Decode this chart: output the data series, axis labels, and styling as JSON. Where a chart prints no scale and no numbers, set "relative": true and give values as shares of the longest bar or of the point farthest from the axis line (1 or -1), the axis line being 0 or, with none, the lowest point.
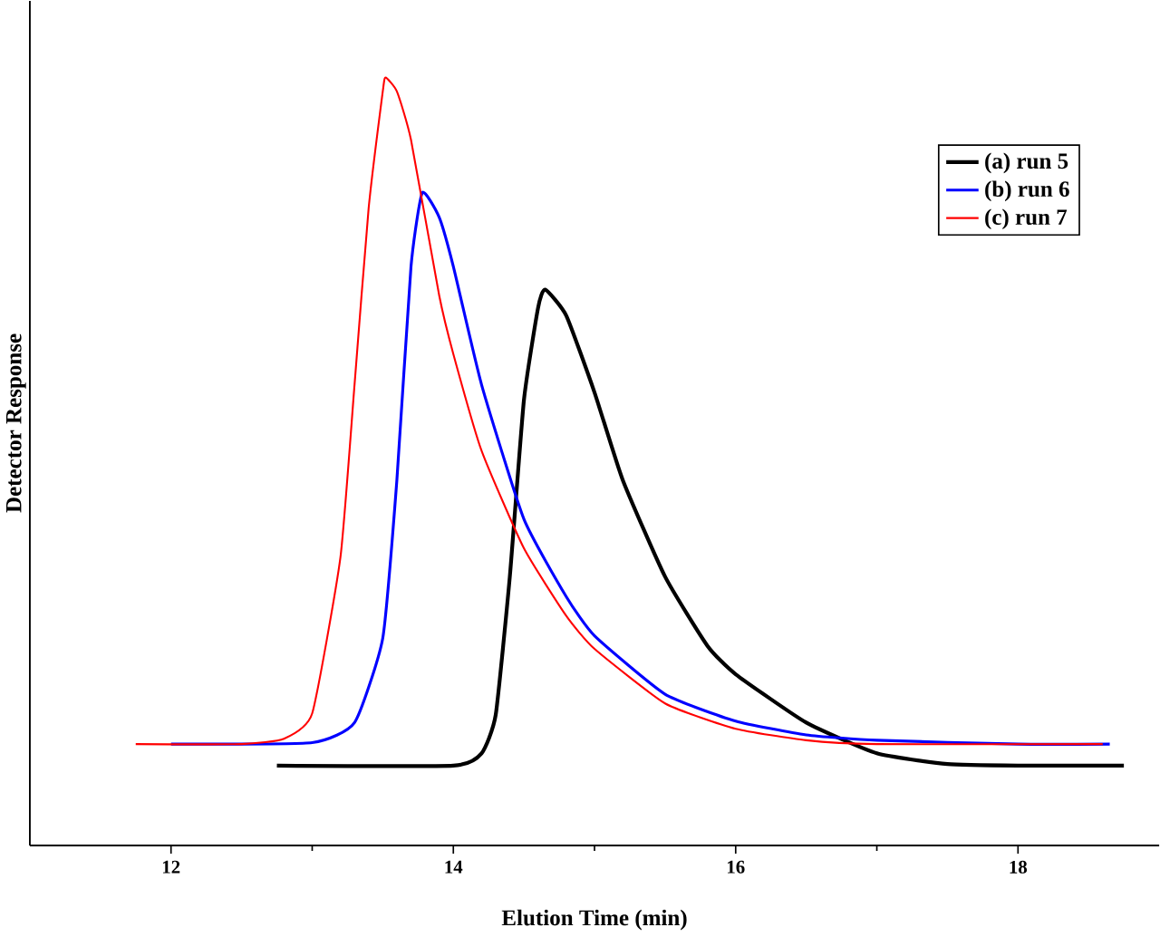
{
  "chart_data": {
    "type": "line",
    "relative": true,
    "xlabel": "Elution Time (min)",
    "ylabel": "Detector Response",
    "xlim": [
      11,
      19
    ],
    "xticks": [
      12,
      14,
      16,
      18
    ],
    "legend": "top right",
    "tick_labels": "x",
    "marker": "none",
    "line_style": "solid",
    "series": [
      {
        "name": "(a) run 5",
        "color": "#000000",
        "x": [
          12.75,
          14.0,
          14.2,
          14.3,
          14.4,
          14.5,
          14.6,
          14.65,
          14.8,
          15.0,
          15.2,
          15.5,
          15.8,
          16.0,
          16.5,
          17.0,
          17.5,
          18.0,
          18.75
        ],
        "values": [
          0.104,
          0.104,
          0.12,
          0.17,
          0.35,
          0.58,
          0.7,
          0.724,
          0.69,
          0.59,
          0.476,
          0.35,
          0.26,
          0.223,
          0.16,
          0.12,
          0.106,
          0.104,
          0.104
        ]
      },
      {
        "name": "(b) run 6",
        "color": "#0000ff",
        "x": [
          12.0,
          13.0,
          13.3,
          13.5,
          13.6,
          13.7,
          13.78,
          13.9,
          14.0,
          14.2,
          14.5,
          14.8,
          15.0,
          15.5,
          16.0,
          16.5,
          17.0,
          18.0,
          18.65
        ],
        "values": [
          0.132,
          0.134,
          0.16,
          0.27,
          0.476,
          0.754,
          0.85,
          0.818,
          0.754,
          0.6,
          0.425,
          0.324,
          0.273,
          0.197,
          0.162,
          0.144,
          0.137,
          0.132,
          0.132
        ]
      },
      {
        "name": "(c) run 7",
        "color": "#ff0000",
        "x": [
          11.75,
          12.5,
          12.8,
          13.0,
          13.2,
          13.3,
          13.4,
          13.5,
          13.52,
          13.6,
          13.7,
          13.9,
          14.0,
          14.2,
          14.5,
          14.8,
          15.0,
          15.5,
          16.0,
          16.5,
          17.0,
          18.6
        ],
        "values": [
          0.132,
          0.132,
          0.139,
          0.172,
          0.375,
          0.6,
          0.83,
          0.982,
          1.0,
          0.982,
          0.919,
          0.716,
          0.64,
          0.514,
          0.387,
          0.299,
          0.256,
          0.185,
          0.152,
          0.137,
          0.132,
          0.132
        ]
      }
    ]
  }
}
